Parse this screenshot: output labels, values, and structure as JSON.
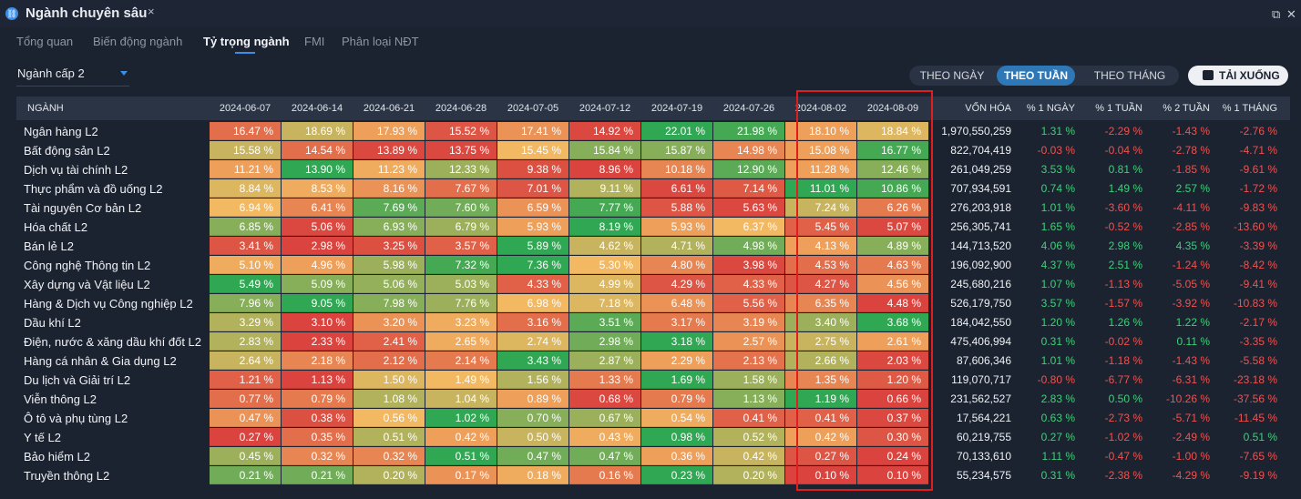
{
  "window": {
    "title": "Ngành chuyên sâu",
    "close_label": "×"
  },
  "tabs": [
    "Tổng quan",
    "Biến động ngành",
    "Tỷ trọng ngành",
    "FMI",
    "Phân loại NĐT"
  ],
  "active_tab": 2,
  "level_select": {
    "value": "Ngành cấp 2"
  },
  "period_buttons": [
    "THEO NGÀY",
    "THEO TUẦN",
    "THEO THÁNG"
  ],
  "active_period": 1,
  "download_label": "TẢI XUỐNG",
  "headers": {
    "industry": "NGÀNH",
    "dates": [
      "2024-06-07",
      "2024-06-14",
      "2024-06-21",
      "2024-06-28",
      "2024-07-05",
      "2024-07-12",
      "2024-07-19",
      "2024-07-26",
      "2024-08-02",
      "2024-08-09"
    ],
    "market_cap": "VỐN HÓA",
    "changes": [
      "% 1 NGÀY",
      "% 1 TUẦN",
      "% 2 TUẦN",
      "% 1 THÁNG"
    ]
  },
  "rows": [
    {
      "name": "Ngân hàng L2",
      "weights": [
        "16.47 %",
        "18.69 %",
        "17.93 %",
        "15.52 %",
        "17.41 %",
        "14.92 %",
        "22.01 %",
        "21.98 %",
        "18.10 %",
        "18.84 %"
      ],
      "levels": [
        0.2,
        0.6,
        0.4,
        0.1,
        0.35,
        0.05,
        0.95,
        0.9,
        0.4,
        0.55
      ],
      "cap": "1,970,550,259",
      "changes": [
        "1.31 %",
        "-2.29 %",
        "-1.43 %",
        "-2.76 %"
      ]
    },
    {
      "name": "Bất động sản L2",
      "weights": [
        "15.58 %",
        "14.54 %",
        "13.89 %",
        "13.75 %",
        "15.45 %",
        "15.84 %",
        "15.87 %",
        "14.98 %",
        "15.08 %",
        "16.77 %"
      ],
      "levels": [
        0.6,
        0.2,
        0.05,
        0.05,
        0.5,
        0.75,
        0.75,
        0.3,
        0.4,
        0.9
      ],
      "cap": "822,704,419",
      "changes": [
        "-0.03 %",
        "-0.04 %",
        "-2.78 %",
        "-4.71 %"
      ]
    },
    {
      "name": "Dịch vụ tài chính L2",
      "weights": [
        "11.21 %",
        "13.90 %",
        "11.23 %",
        "12.33 %",
        "9.38 %",
        "8.96 %",
        "10.18 %",
        "12.90 %",
        "11.28 %",
        "12.46 %"
      ],
      "levels": [
        0.4,
        0.95,
        0.45,
        0.7,
        0.08,
        0.03,
        0.3,
        0.85,
        0.4,
        0.75
      ],
      "cap": "261,049,259",
      "changes": [
        "3.53 %",
        "0.81 %",
        "-1.85 %",
        "-9.61 %"
      ]
    },
    {
      "name": "Thực phẩm và đồ uống L2",
      "weights": [
        "8.84 %",
        "8.53 %",
        "8.16 %",
        "7.67 %",
        "7.01 %",
        "9.11 %",
        "6.61 %",
        "7.14 %",
        "11.01 %",
        "10.86 %"
      ],
      "levels": [
        0.55,
        0.45,
        0.35,
        0.2,
        0.1,
        0.65,
        0.05,
        0.12,
        0.95,
        0.9
      ],
      "cap": "707,934,591",
      "changes": [
        "0.74 %",
        "1.49 %",
        "2.57 %",
        "-1.72 %"
      ]
    },
    {
      "name": "Tài nguyên Cơ bản L2",
      "weights": [
        "6.94 %",
        "6.41 %",
        "7.69 %",
        "7.60 %",
        "6.59 %",
        "7.77 %",
        "5.88 %",
        "5.63 %",
        "7.24 %",
        "6.26 %"
      ],
      "levels": [
        0.5,
        0.3,
        0.85,
        0.8,
        0.35,
        0.9,
        0.1,
        0.05,
        0.6,
        0.25
      ],
      "cap": "276,203,918",
      "changes": [
        "1.01 %",
        "-3.60 %",
        "-4.11 %",
        "-9.83 %"
      ]
    },
    {
      "name": "Hóa chất L2",
      "weights": [
        "6.85 %",
        "5.06 %",
        "6.93 %",
        "6.79 %",
        "5.93 %",
        "8.19 %",
        "5.93 %",
        "6.37 %",
        "5.45 %",
        "5.07 %"
      ],
      "levels": [
        0.75,
        0.05,
        0.75,
        0.7,
        0.4,
        0.95,
        0.4,
        0.5,
        0.15,
        0.05
      ],
      "cap": "256,305,741",
      "changes": [
        "1.65 %",
        "-0.52 %",
        "-2.85 %",
        "-13.60 %"
      ]
    },
    {
      "name": "Bán lẻ L2",
      "weights": [
        "3.41 %",
        "2.98 %",
        "3.25 %",
        "3.57 %",
        "5.89 %",
        "4.62 %",
        "4.71 %",
        "4.98 %",
        "4.13 %",
        "4.89 %"
      ],
      "levels": [
        0.1,
        0.03,
        0.08,
        0.15,
        0.95,
        0.6,
        0.65,
        0.8,
        0.4,
        0.75
      ],
      "cap": "144,713,520",
      "changes": [
        "4.06 %",
        "2.98 %",
        "4.35 %",
        "-3.39 %"
      ]
    },
    {
      "name": "Công nghệ Thông tin L2",
      "weights": [
        "5.10 %",
        "4.96 %",
        "5.98 %",
        "7.32 %",
        "7.36 %",
        "5.30 %",
        "4.80 %",
        "3.98 %",
        "4.53 %",
        "4.63 %"
      ],
      "levels": [
        0.45,
        0.4,
        0.7,
        0.9,
        0.95,
        0.5,
        0.3,
        0.05,
        0.2,
        0.25
      ],
      "cap": "196,092,900",
      "changes": [
        "4.37 %",
        "2.51 %",
        "-1.24 %",
        "-8.42 %"
      ]
    },
    {
      "name": "Xây dựng và Vật liệu L2",
      "weights": [
        "5.49 %",
        "5.09 %",
        "5.06 %",
        "5.03 %",
        "4.33 %",
        "4.99 %",
        "4.29 %",
        "4.33 %",
        "4.27 %",
        "4.56 %"
      ],
      "levels": [
        0.95,
        0.75,
        0.72,
        0.7,
        0.15,
        0.55,
        0.1,
        0.15,
        0.1,
        0.35
      ],
      "cap": "245,680,216",
      "changes": [
        "1.07 %",
        "-1.13 %",
        "-5.05 %",
        "-9.41 %"
      ]
    },
    {
      "name": "Hàng & Dịch vụ Công nghiệp L2",
      "weights": [
        "7.96 %",
        "9.05 %",
        "7.98 %",
        "7.76 %",
        "6.98 %",
        "7.18 %",
        "6.48 %",
        "5.56 %",
        "6.35 %",
        "4.48 %"
      ],
      "levels": [
        0.75,
        0.95,
        0.75,
        0.7,
        0.5,
        0.55,
        0.35,
        0.15,
        0.3,
        0.03
      ],
      "cap": "526,179,750",
      "changes": [
        "3.57 %",
        "-1.57 %",
        "-3.92 %",
        "-10.83 %"
      ]
    },
    {
      "name": "Dầu khí L2",
      "weights": [
        "3.29 %",
        "3.10 %",
        "3.20 %",
        "3.23 %",
        "3.16 %",
        "3.51 %",
        "3.17 %",
        "3.19 %",
        "3.40 %",
        "3.68 %"
      ],
      "levels": [
        0.65,
        0.03,
        0.35,
        0.45,
        0.2,
        0.85,
        0.25,
        0.3,
        0.7,
        0.95
      ],
      "cap": "184,042,550",
      "changes": [
        "1.20 %",
        "1.26 %",
        "1.22 %",
        "-2.17 %"
      ]
    },
    {
      "name": "Điện, nước & xăng dầu khí đốt L2",
      "weights": [
        "2.83 %",
        "2.33 %",
        "2.41 %",
        "2.65 %",
        "2.74 %",
        "2.98 %",
        "3.18 %",
        "2.57 %",
        "2.75 %",
        "2.61 %"
      ],
      "levels": [
        0.65,
        0.03,
        0.15,
        0.45,
        0.55,
        0.8,
        0.95,
        0.35,
        0.6,
        0.4
      ],
      "cap": "475,406,994",
      "changes": [
        "0.31 %",
        "-0.02 %",
        "0.11 %",
        "-3.35 %"
      ]
    },
    {
      "name": "Hàng cá nhân & Gia dụng L2",
      "weights": [
        "2.64 %",
        "2.18 %",
        "2.12 %",
        "2.14 %",
        "3.43 %",
        "2.87 %",
        "2.29 %",
        "2.13 %",
        "2.66 %",
        "2.03 %"
      ],
      "levels": [
        0.6,
        0.3,
        0.2,
        0.25,
        0.95,
        0.7,
        0.4,
        0.22,
        0.65,
        0.05
      ],
      "cap": "87,606,346",
      "changes": [
        "1.01 %",
        "-1.18 %",
        "-1.43 %",
        "-5.58 %"
      ]
    },
    {
      "name": "Du lịch và Giải trí L2",
      "weights": [
        "1.21 %",
        "1.13 %",
        "1.50 %",
        "1.49 %",
        "1.56 %",
        "1.33 %",
        "1.69 %",
        "1.58 %",
        "1.35 %",
        "1.20 %"
      ],
      "levels": [
        0.15,
        0.03,
        0.55,
        0.5,
        0.65,
        0.25,
        0.95,
        0.7,
        0.3,
        0.12
      ],
      "cap": "119,070,717",
      "changes": [
        "-0.80 %",
        "-6.77 %",
        "-6.31 %",
        "-23.18 %"
      ]
    },
    {
      "name": "Viễn thông L2",
      "weights": [
        "0.77 %",
        "0.79 %",
        "1.08 %",
        "1.04 %",
        "0.89 %",
        "0.68 %",
        "0.79 %",
        "1.13 %",
        "1.19 %",
        "0.66 %"
      ],
      "levels": [
        0.2,
        0.25,
        0.65,
        0.6,
        0.4,
        0.05,
        0.25,
        0.75,
        0.95,
        0.03
      ],
      "cap": "231,562,527",
      "changes": [
        "2.83 %",
        "0.50 %",
        "-10.26 %",
        "-37.56 %"
      ]
    },
    {
      "name": "Ô tô và phụ tùng L2",
      "weights": [
        "0.47 %",
        "0.38 %",
        "0.56 %",
        "1.02 %",
        "0.70 %",
        "0.67 %",
        "0.54 %",
        "0.41 %",
        "0.41 %",
        "0.37 %"
      ],
      "levels": [
        0.35,
        0.08,
        0.5,
        0.95,
        0.75,
        0.7,
        0.45,
        0.15,
        0.15,
        0.05
      ],
      "cap": "17,564,221",
      "changes": [
        "0.63 %",
        "-2.73 %",
        "-5.71 %",
        "-11.45 %"
      ]
    },
    {
      "name": "Y tế L2",
      "weights": [
        "0.27 %",
        "0.35 %",
        "0.51 %",
        "0.42 %",
        "0.50 %",
        "0.43 %",
        "0.98 %",
        "0.52 %",
        "0.42 %",
        "0.30 %"
      ],
      "levels": [
        0.03,
        0.2,
        0.65,
        0.4,
        0.6,
        0.45,
        0.95,
        0.65,
        0.4,
        0.1
      ],
      "cap": "60,219,755",
      "changes": [
        "0.27 %",
        "-1.02 %",
        "-2.49 %",
        "0.51 %"
      ]
    },
    {
      "name": "Bảo hiểm L2",
      "weights": [
        "0.45 %",
        "0.32 %",
        "0.32 %",
        "0.51 %",
        "0.47 %",
        "0.47 %",
        "0.36 %",
        "0.42 %",
        "0.27 %",
        "0.24 %"
      ],
      "levels": [
        0.7,
        0.3,
        0.3,
        0.95,
        0.8,
        0.8,
        0.4,
        0.6,
        0.1,
        0.03
      ],
      "cap": "70,133,610",
      "changes": [
        "1.11 %",
        "-0.47 %",
        "-1.00 %",
        "-7.65 %"
      ]
    },
    {
      "name": "Truyền thông L2",
      "weights": [
        "0.21 %",
        "0.21 %",
        "0.20 %",
        "0.17 %",
        "0.18 %",
        "0.16 %",
        "0.23 %",
        "0.20 %",
        "0.10 %",
        "0.10 %"
      ],
      "levels": [
        0.8,
        0.8,
        0.65,
        0.35,
        0.45,
        0.25,
        0.95,
        0.65,
        0.03,
        0.03
      ],
      "cap": "55,234,575",
      "changes": [
        "0.31 %",
        "-2.38 %",
        "-4.29 %",
        "-9.19 %"
      ]
    }
  ],
  "colors": {
    "low": "#d83c3c",
    "mid": "#f3b862",
    "high": "#1aa551",
    "positive": "#3fd07a",
    "negative": "#ef5350"
  }
}
